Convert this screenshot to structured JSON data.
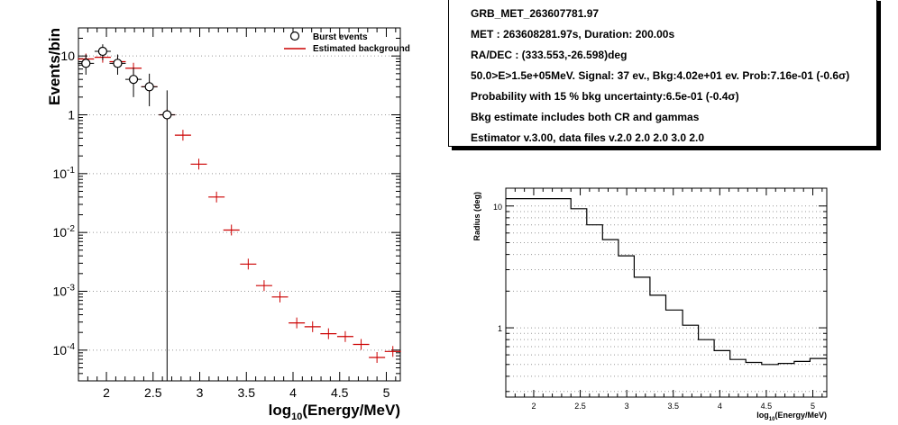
{
  "chart_data": [
    {
      "type": "scatter",
      "xlabel": "log10(Energy/MeV)",
      "ylabel": "Events/bin",
      "xlim": [
        1.7,
        5.15
      ],
      "ylim": [
        3e-05,
        30
      ],
      "y_scale": "log",
      "grid": "y-major dotted",
      "legend_position": "top-right",
      "x_ticks": [
        "2",
        "2.5",
        "3",
        "3.5",
        "4",
        "4.5",
        "5"
      ],
      "y_ticks": [
        "10",
        "1",
        "10^-1",
        "10^-2",
        "10^-3",
        "10^-4"
      ],
      "legend": [
        "Burst events",
        "Estimated background"
      ],
      "series": [
        {
          "name": "Burst events",
          "marker": "open-circle",
          "color": "#000000",
          "points": [
            {
              "x": 1.78,
              "y": 7.5,
              "ylo": 4.8,
              "yhi": 10.6
            },
            {
              "x": 1.96,
              "y": 12.0,
              "ylo": 8.5,
              "yhi": 15.8
            },
            {
              "x": 2.12,
              "y": 7.5,
              "ylo": 4.8,
              "yhi": 10.6
            },
            {
              "x": 2.29,
              "y": 4.0,
              "ylo": 2.0,
              "yhi": 6.3
            },
            {
              "x": 2.46,
              "y": 3.0,
              "ylo": 1.4,
              "yhi": 5.0
            },
            {
              "x": 2.65,
              "y": 1.0,
              "ylo": 3e-05,
              "yhi": 2.6
            }
          ]
        },
        {
          "name": "Estimated background",
          "marker": "cross",
          "color": "#cc0000",
          "points": [
            {
              "x": 1.78,
              "y": 8.9
            },
            {
              "x": 1.96,
              "y": 9.5
            },
            {
              "x": 2.12,
              "y": 8.0
            },
            {
              "x": 2.29,
              "y": 6.2
            },
            {
              "x": 2.46,
              "y": 3.0
            },
            {
              "x": 2.65,
              "y": 1.0
            },
            {
              "x": 2.82,
              "y": 0.45
            },
            {
              "x": 2.99,
              "y": 0.145
            },
            {
              "x": 3.18,
              "y": 0.04
            },
            {
              "x": 3.34,
              "y": 0.011
            },
            {
              "x": 3.52,
              "y": 0.0029
            },
            {
              "x": 3.69,
              "y": 0.00125
            },
            {
              "x": 3.86,
              "y": 0.0008
            },
            {
              "x": 4.04,
              "y": 0.00029
            },
            {
              "x": 4.21,
              "y": 0.00025
            },
            {
              "x": 4.38,
              "y": 0.00019
            },
            {
              "x": 4.56,
              "y": 0.00017
            },
            {
              "x": 4.73,
              "y": 0.000125
            },
            {
              "x": 4.9,
              "y": 7.5e-05
            },
            {
              "x": 5.07,
              "y": 9.5e-05
            }
          ]
        }
      ]
    },
    {
      "type": "line",
      "style": "step",
      "xlabel": "log10(Energy/MeV)",
      "ylabel": "Radius (deg)",
      "xlim": [
        1.7,
        5.15
      ],
      "ylim": [
        0.27,
        14
      ],
      "y_scale": "log",
      "grid": "y dotted",
      "x_ticks": [
        "2",
        "2.5",
        "3",
        "3.5",
        "4",
        "4.5",
        "5"
      ],
      "y_ticks": [
        "10",
        "1"
      ],
      "steps": {
        "edges": [
          1.7,
          2.4,
          2.57,
          2.74,
          2.91,
          3.08,
          3.25,
          3.42,
          3.6,
          3.77,
          3.94,
          4.11,
          4.28,
          4.45,
          4.63,
          4.8,
          4.97,
          5.15
        ],
        "values": [
          11.5,
          9.5,
          7.0,
          5.3,
          3.9,
          2.6,
          1.85,
          1.4,
          1.05,
          0.8,
          0.65,
          0.55,
          0.52,
          0.5,
          0.51,
          0.53,
          0.56
        ]
      }
    }
  ],
  "info": {
    "lines": [
      "GRB_MET_263607781.97",
      "MET : 263608281.97s, Duration: 200.00s",
      "RA/DEC    : (333.553,-26.598)deg",
      "50.0>E>1.5e+05MeV. Signal: 37 ev., Bkg:4.02e+01 ev. Prob:7.16e-01 (-0.6σ)",
      "Probability with 15 % bkg uncertainty:6.5e-01 (-0.4σ)",
      "Bkg estimate includes both CR and gammas",
      "Estimator v.3.00, data files v.2.0 2.0 2.0 3.0 2.0"
    ]
  }
}
